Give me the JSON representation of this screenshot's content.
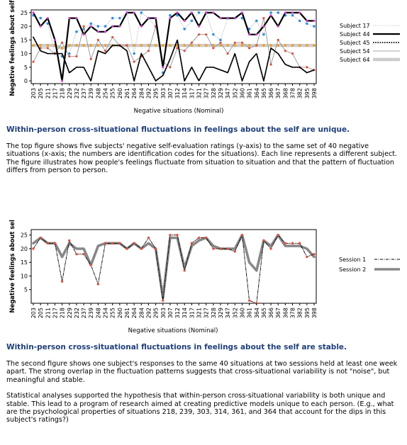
{
  "situations": [
    "203",
    "205",
    "211",
    "217",
    "218",
    "229",
    "232",
    "237",
    "239",
    "248",
    "254",
    "255",
    "260",
    "261",
    "264",
    "284",
    "292",
    "295",
    "303",
    "307",
    "312",
    "314",
    "317",
    "321",
    "327",
    "328",
    "329",
    "347",
    "352",
    "360",
    "361",
    "364",
    "365",
    "366",
    "367",
    "368",
    "378",
    "382",
    "395",
    "398"
  ],
  "chart_data": [
    {
      "type": "line",
      "xlabel": "Negative situations (Nominal)",
      "ylabel": "Negative feelings about self",
      "ylim": [
        -1,
        26
      ],
      "yticks": [
        0,
        5,
        10,
        15,
        20,
        25
      ],
      "legend_position": "right",
      "series": [
        {
          "name": "Subject 17",
          "values": [
            24,
            23,
            21,
            10,
            9,
            10,
            18,
            19,
            21,
            20,
            20,
            23,
            23,
            25,
            10,
            25,
            23,
            20,
            3,
            24,
            24,
            19,
            22,
            25,
            25,
            17,
            15,
            23,
            23,
            23,
            19,
            22,
            17,
            25,
            25,
            24,
            24,
            22,
            21,
            20
          ]
        },
        {
          "name": "Subject 44",
          "values": [
            25,
            20,
            23,
            15,
            0,
            23,
            23,
            17,
            20,
            18,
            18,
            20,
            20,
            25,
            25,
            20,
            23,
            23,
            5,
            23,
            25,
            22,
            25,
            20,
            25,
            25,
            23,
            23,
            23,
            25,
            17,
            17,
            20,
            24,
            20,
            25,
            25,
            25,
            22,
            22
          ]
        },
        {
          "name": "Subject 45",
          "values": [
            16,
            11,
            10,
            10,
            10,
            3,
            5,
            5,
            0,
            11,
            10,
            13,
            13,
            11,
            0,
            10,
            5,
            0,
            2,
            8,
            15,
            0,
            5,
            0,
            5,
            5,
            4,
            3,
            10,
            0,
            7,
            10,
            0,
            12,
            10,
            6,
            5,
            5,
            3,
            4
          ]
        },
        {
          "name": "Subject 54",
          "values": [
            7,
            12,
            12,
            10,
            14,
            9,
            9,
            20,
            8,
            15,
            11,
            16,
            13,
            13,
            7,
            9,
            11,
            20,
            7,
            5,
            12,
            11,
            14,
            17,
            17,
            12,
            14,
            10,
            14,
            14,
            12,
            13,
            23,
            6,
            15,
            11,
            10,
            5,
            5,
            4
          ]
        },
        {
          "name": "Subject 64",
          "values": [
            13,
            13,
            13,
            13,
            12,
            13,
            13,
            13,
            13,
            13,
            13,
            13,
            13,
            13,
            13,
            13,
            13,
            13,
            13,
            13,
            13,
            13,
            13,
            13,
            13,
            13,
            13,
            13,
            13,
            13,
            13,
            13,
            13,
            13,
            13,
            13,
            13,
            13,
            13,
            13
          ]
        }
      ]
    },
    {
      "type": "line",
      "xlabel": "Negative situations (Nominal)",
      "ylabel": "Negative feelings about self",
      "ylim": [
        0,
        27
      ],
      "yticks": [
        5,
        10,
        15,
        20,
        25
      ],
      "legend_position": "right",
      "series": [
        {
          "name": "Session 1",
          "values": [
            20,
            24,
            22,
            22,
            8,
            23,
            18,
            18,
            14,
            7,
            22,
            22,
            22,
            20,
            22,
            20,
            24,
            20,
            1,
            25,
            25,
            12,
            22,
            24,
            24,
            20,
            20,
            20,
            19,
            25,
            1,
            0,
            23,
            20,
            25,
            22,
            22,
            22,
            17,
            18
          ]
        },
        {
          "name": "Session 2",
          "values": [
            22,
            24,
            22,
            22,
            17,
            22,
            20,
            20,
            14,
            21,
            22,
            22,
            22,
            20,
            22,
            20,
            22,
            20,
            2,
            24,
            24,
            13,
            21,
            23,
            24,
            21,
            20,
            20,
            20,
            25,
            15,
            12,
            23,
            21,
            25,
            21,
            21,
            21,
            20,
            17
          ]
        }
      ]
    }
  ],
  "section1": {
    "heading": "Within-person cross-situational fluctuations in feelings about the self are unique.",
    "text": "The top figure shows five subjects' negative self-evaluation ratings (y-axis) to the same set of 40 negative situations (x-axis; the numbers are identification codes for the situations). Each line represents a different subject. The figure illustrates how people's feelings fluctuate from situation to situation and that the pattern of fluctuation differs from person to person."
  },
  "section2": {
    "heading": "Within-person cross-situational fluctuations in feelings about the self are stable.",
    "text1": "The second figure shows one subject's responses to the same 40 situations at two sessions held at least one week apart.  The strong overlap in the fluctuation patterns suggests that cross-situational variability is not \"noise\", but meaningful and stable.",
    "text2": "Statistical analyses supported the hypothesis that within-person cross-situational variability is both unique and stable.  This lead to a program of research aimed at creating predictive models unique to each person.  (E.g., what are the psychological properties of situations 218, 239, 303, 314, 361, and 364 that account for the dips in this subject's ratings?)"
  },
  "colors": {
    "heading": "#1f3f7a",
    "subject17": "#aaaaaa",
    "subject44": "#000000",
    "subject45": "#000000",
    "subject54": "#888888",
    "subject64": "#cccccc",
    "session1": "#000000",
    "session2": "#888888",
    "marker_red": "#e0503c",
    "marker_blue": "#2f8fe6",
    "marker_orange": "#f0a030",
    "marker_magenta": "#d040d0"
  }
}
